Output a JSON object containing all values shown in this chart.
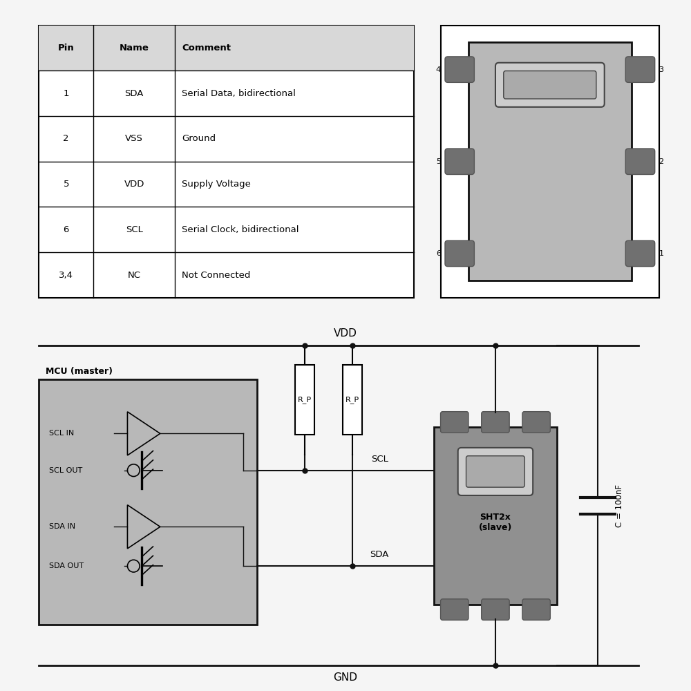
{
  "bg_color": "#f5f5f5",
  "table_header_bg": "#d8d8d8",
  "table_data": [
    [
      "Pin",
      "Name",
      "Comment"
    ],
    [
      "1",
      "SDA",
      "Serial Data, bidirectional"
    ],
    [
      "2",
      "VSS",
      "Ground"
    ],
    [
      "5",
      "VDD",
      "Supply Voltage"
    ],
    [
      "6",
      "SCL",
      "Serial Clock, bidirectional"
    ],
    [
      "3,4",
      "NC",
      "Not Connected"
    ]
  ],
  "chip_color": "#b8b8b8",
  "chip_border": "#111111",
  "pad_color": "#707070",
  "mcu_color": "#b8b8b8",
  "mcu_border": "#111111",
  "sht_color": "#909090",
  "wire_color": "#111111",
  "vdd_label": "VDD",
  "gnd_label": "GND",
  "scl_label": "SCL",
  "sda_label": "SDA",
  "cap_label": "C = 100nF",
  "mcu_label": "MCU (master)",
  "sht_label": "SHT2x\n(slave)",
  "rp_label": "R_P",
  "scl_in": "SCL IN",
  "scl_out": "SCL OUT",
  "sda_in": "SDA IN",
  "sda_out": "SDA OUT"
}
